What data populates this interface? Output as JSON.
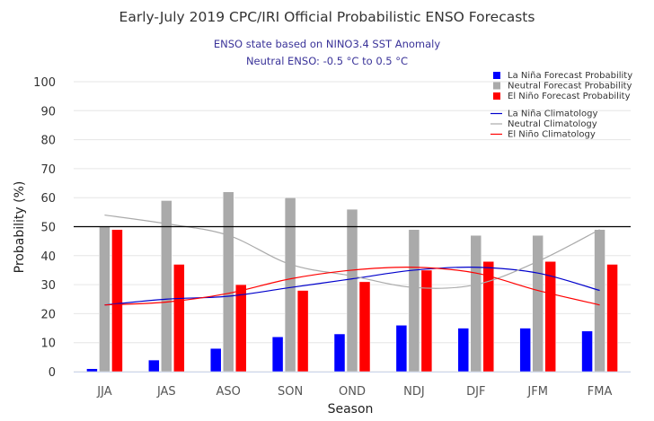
{
  "chart_data": {
    "type": "bar",
    "title": "Early-July 2019 CPC/IRI Official Probabilistic ENSO Forecasts",
    "subtitle_lines": [
      "ENSO state based on NINO3.4 SST Anomaly",
      "Neutral ENSO: -0.5 °C to 0.5 °C"
    ],
    "xlabel": "Season",
    "ylabel": "Probability (%)",
    "ylim": [
      0,
      100
    ],
    "yticks": [
      0,
      10,
      20,
      30,
      40,
      50,
      60,
      70,
      80,
      90,
      100
    ],
    "grid": true,
    "reference_line": 50,
    "legend_position": "top-right",
    "categories": [
      "JJA",
      "JAS",
      "ASO",
      "SON",
      "OND",
      "NDJ",
      "DJF",
      "JFM",
      "FMA"
    ],
    "series": [
      {
        "name": "La Niña Forecast Probability",
        "kind": "bar",
        "color": "#0000ff",
        "values": [
          1,
          4,
          8,
          12,
          13,
          16,
          15,
          15,
          14
        ]
      },
      {
        "name": "Neutral Forecast Probability",
        "kind": "bar",
        "color": "#aaaaaa",
        "values": [
          50,
          59,
          62,
          60,
          56,
          49,
          47,
          47,
          49
        ]
      },
      {
        "name": "El Niño Forecast Probability",
        "kind": "bar",
        "color": "#ff0000",
        "values": [
          49,
          37,
          30,
          28,
          31,
          35,
          38,
          38,
          37
        ]
      },
      {
        "name": "La Niña Climatology",
        "kind": "line",
        "color": "#0000cc",
        "values": [
          23,
          25,
          26,
          29,
          32,
          35,
          36,
          34,
          28
        ]
      },
      {
        "name": "Neutral Climatology",
        "kind": "line",
        "color": "#aaaaaa",
        "values": [
          54,
          51,
          47,
          37,
          33,
          29,
          30,
          38,
          49
        ]
      },
      {
        "name": "El Niño Climatology",
        "kind": "line",
        "color": "#ff0000",
        "values": [
          23,
          24,
          27,
          32,
          35,
          36,
          34,
          28,
          23
        ]
      }
    ]
  }
}
